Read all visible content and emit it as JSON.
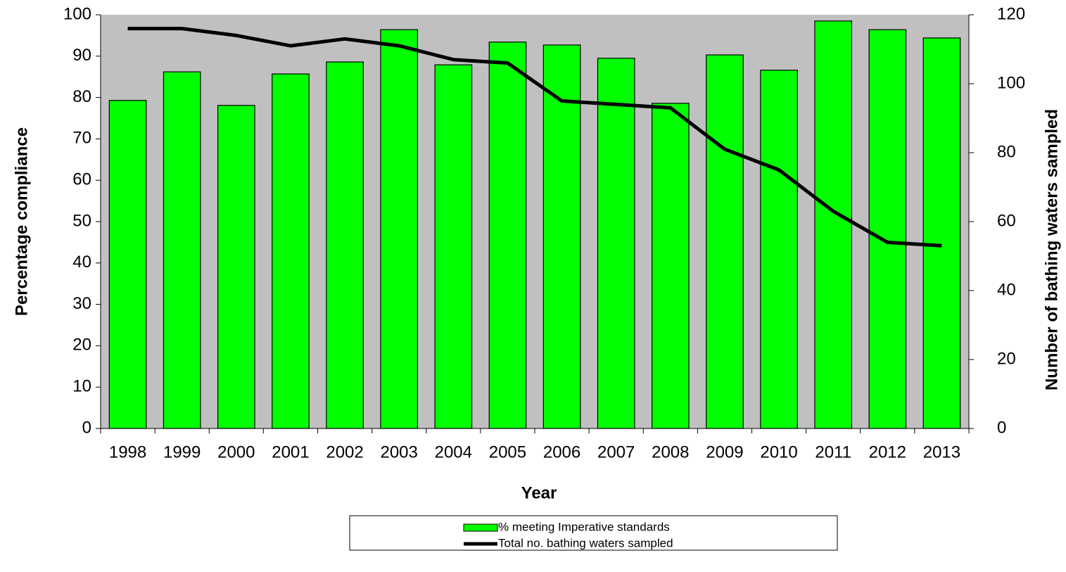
{
  "chart_data": {
    "type": "combo",
    "xlabel": "Year",
    "ylabel": "Percentage compliance",
    "y2label": "Number of bathing waters sampled",
    "categories": [
      "1998",
      "1999",
      "2000",
      "2001",
      "2002",
      "2003",
      "2004",
      "2005",
      "2006",
      "2007",
      "2008",
      "2009",
      "2010",
      "2011",
      "2012",
      "2013"
    ],
    "series": [
      {
        "name": "% meeting Imperative standards",
        "type": "bar",
        "color": "#00ff00",
        "values": [
          79.3,
          86.2,
          78.1,
          85.7,
          88.6,
          96.4,
          87.9,
          93.4,
          92.7,
          89.5,
          78.6,
          90.3,
          86.6,
          98.5,
          96.4,
          94.4
        ]
      },
      {
        "name": "Total no. bathing waters sampled",
        "type": "line",
        "color": "#000000",
        "axis": "y2",
        "values": [
          116,
          116,
          114,
          111,
          113,
          111,
          107,
          106,
          95,
          94,
          93,
          81,
          75,
          63,
          54,
          53
        ]
      }
    ],
    "ylim": [
      0,
      100
    ],
    "yticks": [
      0,
      10,
      20,
      30,
      40,
      50,
      60,
      70,
      80,
      90,
      100
    ],
    "y2lim": [
      0,
      120
    ],
    "y2ticks": [
      0,
      20,
      40,
      60,
      80,
      100,
      120
    ],
    "plot_background": "#c0c0c0"
  }
}
